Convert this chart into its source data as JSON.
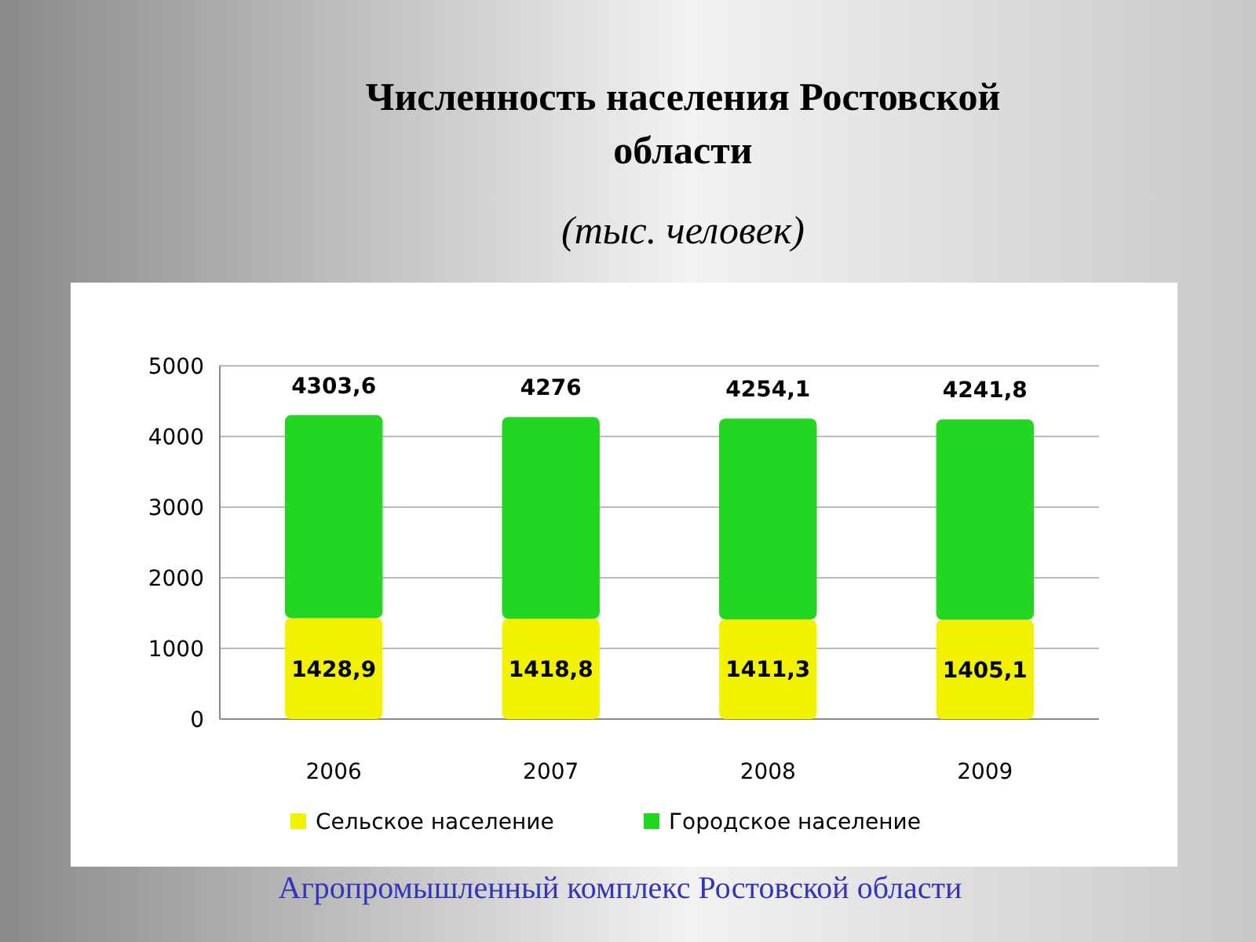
{
  "chart_data": {
    "type": "bar",
    "title": "Численность населения Ростовской области",
    "subtitle": "(тыс. человек)",
    "annotations": [
      "Агропромышленный комплекс Ростовской области"
    ],
    "categories": [
      "2006",
      "2007",
      "2008",
      "2009"
    ],
    "stacked": true,
    "series": [
      {
        "name": "Сельское население",
        "color": "#f2f200",
        "values": [
          1428.9,
          1418.8,
          1411.3,
          1405.1
        ],
        "value_labels": [
          "1428,9",
          "1418,8",
          "1411,3",
          "1405,1"
        ]
      },
      {
        "name": "Городское население",
        "color": "#22d622",
        "values": [
          2874.7,
          2857.2,
          2842.8,
          2836.7
        ]
      }
    ],
    "totals": [
      "4303,6",
      "4276",
      "4254,1",
      "4241,8"
    ],
    "ylim": [
      0,
      5000
    ],
    "yticks": [
      0,
      1000,
      2000,
      3000,
      4000,
      5000
    ],
    "grid": "y",
    "legend": "bottom"
  }
}
